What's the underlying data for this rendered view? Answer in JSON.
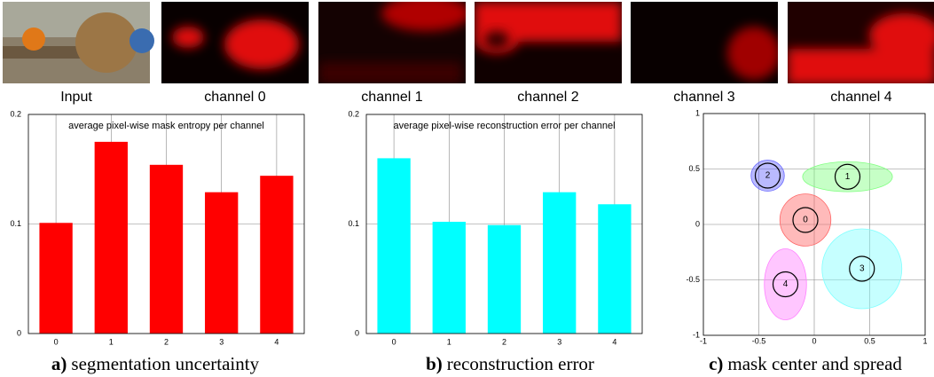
{
  "images": [
    "Input",
    "channel 0",
    "channel 1",
    "channel 2",
    "channel 3",
    "channel 4"
  ],
  "chart_data": [
    {
      "type": "bar",
      "title": "average pixel-wise mask entropy per channel",
      "caption": {
        "label": "a)",
        "text": "segmentation uncertainty"
      },
      "categories": [
        "0",
        "1",
        "2",
        "3",
        "4"
      ],
      "values": [
        0.101,
        0.175,
        0.154,
        0.129,
        0.144
      ],
      "color": "#ff0000",
      "ylim": [
        0,
        0.2
      ],
      "yticks": [
        0,
        0.1,
        0.2
      ],
      "grid": true
    },
    {
      "type": "bar",
      "title": "average pixel-wise reconstruction error per channel",
      "caption": {
        "label": "b)",
        "text": "reconstruction error"
      },
      "categories": [
        "0",
        "1",
        "2",
        "3",
        "4"
      ],
      "values": [
        0.16,
        0.102,
        0.099,
        0.129,
        0.118
      ],
      "color": "#00ffff",
      "ylim": [
        0,
        0.2
      ],
      "yticks": [
        0,
        0.1,
        0.2
      ],
      "grid": true
    },
    {
      "type": "scatter",
      "caption": {
        "label": "c)",
        "text": "mask center and spread"
      },
      "xlim": [
        -1,
        1
      ],
      "ylim": [
        -1,
        1
      ],
      "xticks": [
        -1,
        -0.5,
        0,
        0.5,
        1
      ],
      "yticks": [
        -1,
        -0.5,
        0,
        0.5,
        1
      ],
      "grid": true,
      "points": [
        {
          "label": "0",
          "x": -0.08,
          "y": 0.04,
          "sx": 0.46,
          "sy": 0.47,
          "color": "#ff6666"
        },
        {
          "label": "1",
          "x": 0.3,
          "y": 0.43,
          "sx": 0.81,
          "sy": 0.27,
          "color": "#80ff80"
        },
        {
          "label": "2",
          "x": -0.42,
          "y": 0.44,
          "sx": 0.3,
          "sy": 0.28,
          "color": "#6666ff"
        },
        {
          "label": "3",
          "x": 0.43,
          "y": -0.4,
          "sx": 0.72,
          "sy": 0.72,
          "color": "#80ffff"
        },
        {
          "label": "4",
          "x": -0.26,
          "y": -0.54,
          "sx": 0.38,
          "sy": 0.64,
          "color": "#ff80ff"
        }
      ]
    }
  ]
}
